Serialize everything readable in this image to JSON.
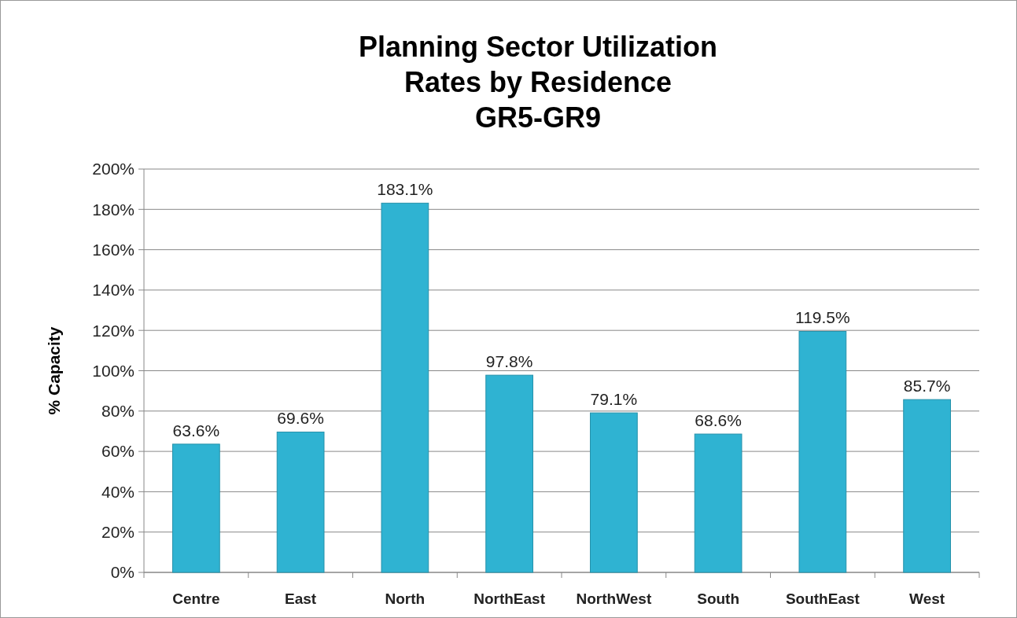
{
  "chart_data": {
    "type": "bar",
    "title": "Planning Sector Utilization\nRates by Residence\nGR5-GR9",
    "ylabel": "% Capacity",
    "categories": [
      "Centre",
      "East",
      "North",
      "NorthEast",
      "NorthWest",
      "South",
      "SouthEast",
      "West"
    ],
    "values": [
      63.6,
      69.6,
      183.1,
      97.8,
      79.1,
      68.6,
      119.5,
      85.7
    ],
    "value_labels": [
      "63.6%",
      "69.6%",
      "183.1%",
      "97.8%",
      "79.1%",
      "68.6%",
      "119.5%",
      "85.7%"
    ],
    "color": "#2fb3d2",
    "ylim": [
      0,
      200
    ],
    "yticks": [
      {
        "value": 0,
        "label": "0%"
      },
      {
        "value": 20,
        "label": "20%"
      },
      {
        "value": 40,
        "label": "40%"
      },
      {
        "value": 60,
        "label": "60%"
      },
      {
        "value": 80,
        "label": "80%"
      },
      {
        "value": 100,
        "label": "100%"
      },
      {
        "value": 120,
        "label": "120%"
      },
      {
        "value": 140,
        "label": "140%"
      },
      {
        "value": 160,
        "label": "160%"
      },
      {
        "value": 180,
        "label": "180%"
      },
      {
        "value": 200,
        "label": "200%"
      }
    ],
    "grid": "y"
  }
}
